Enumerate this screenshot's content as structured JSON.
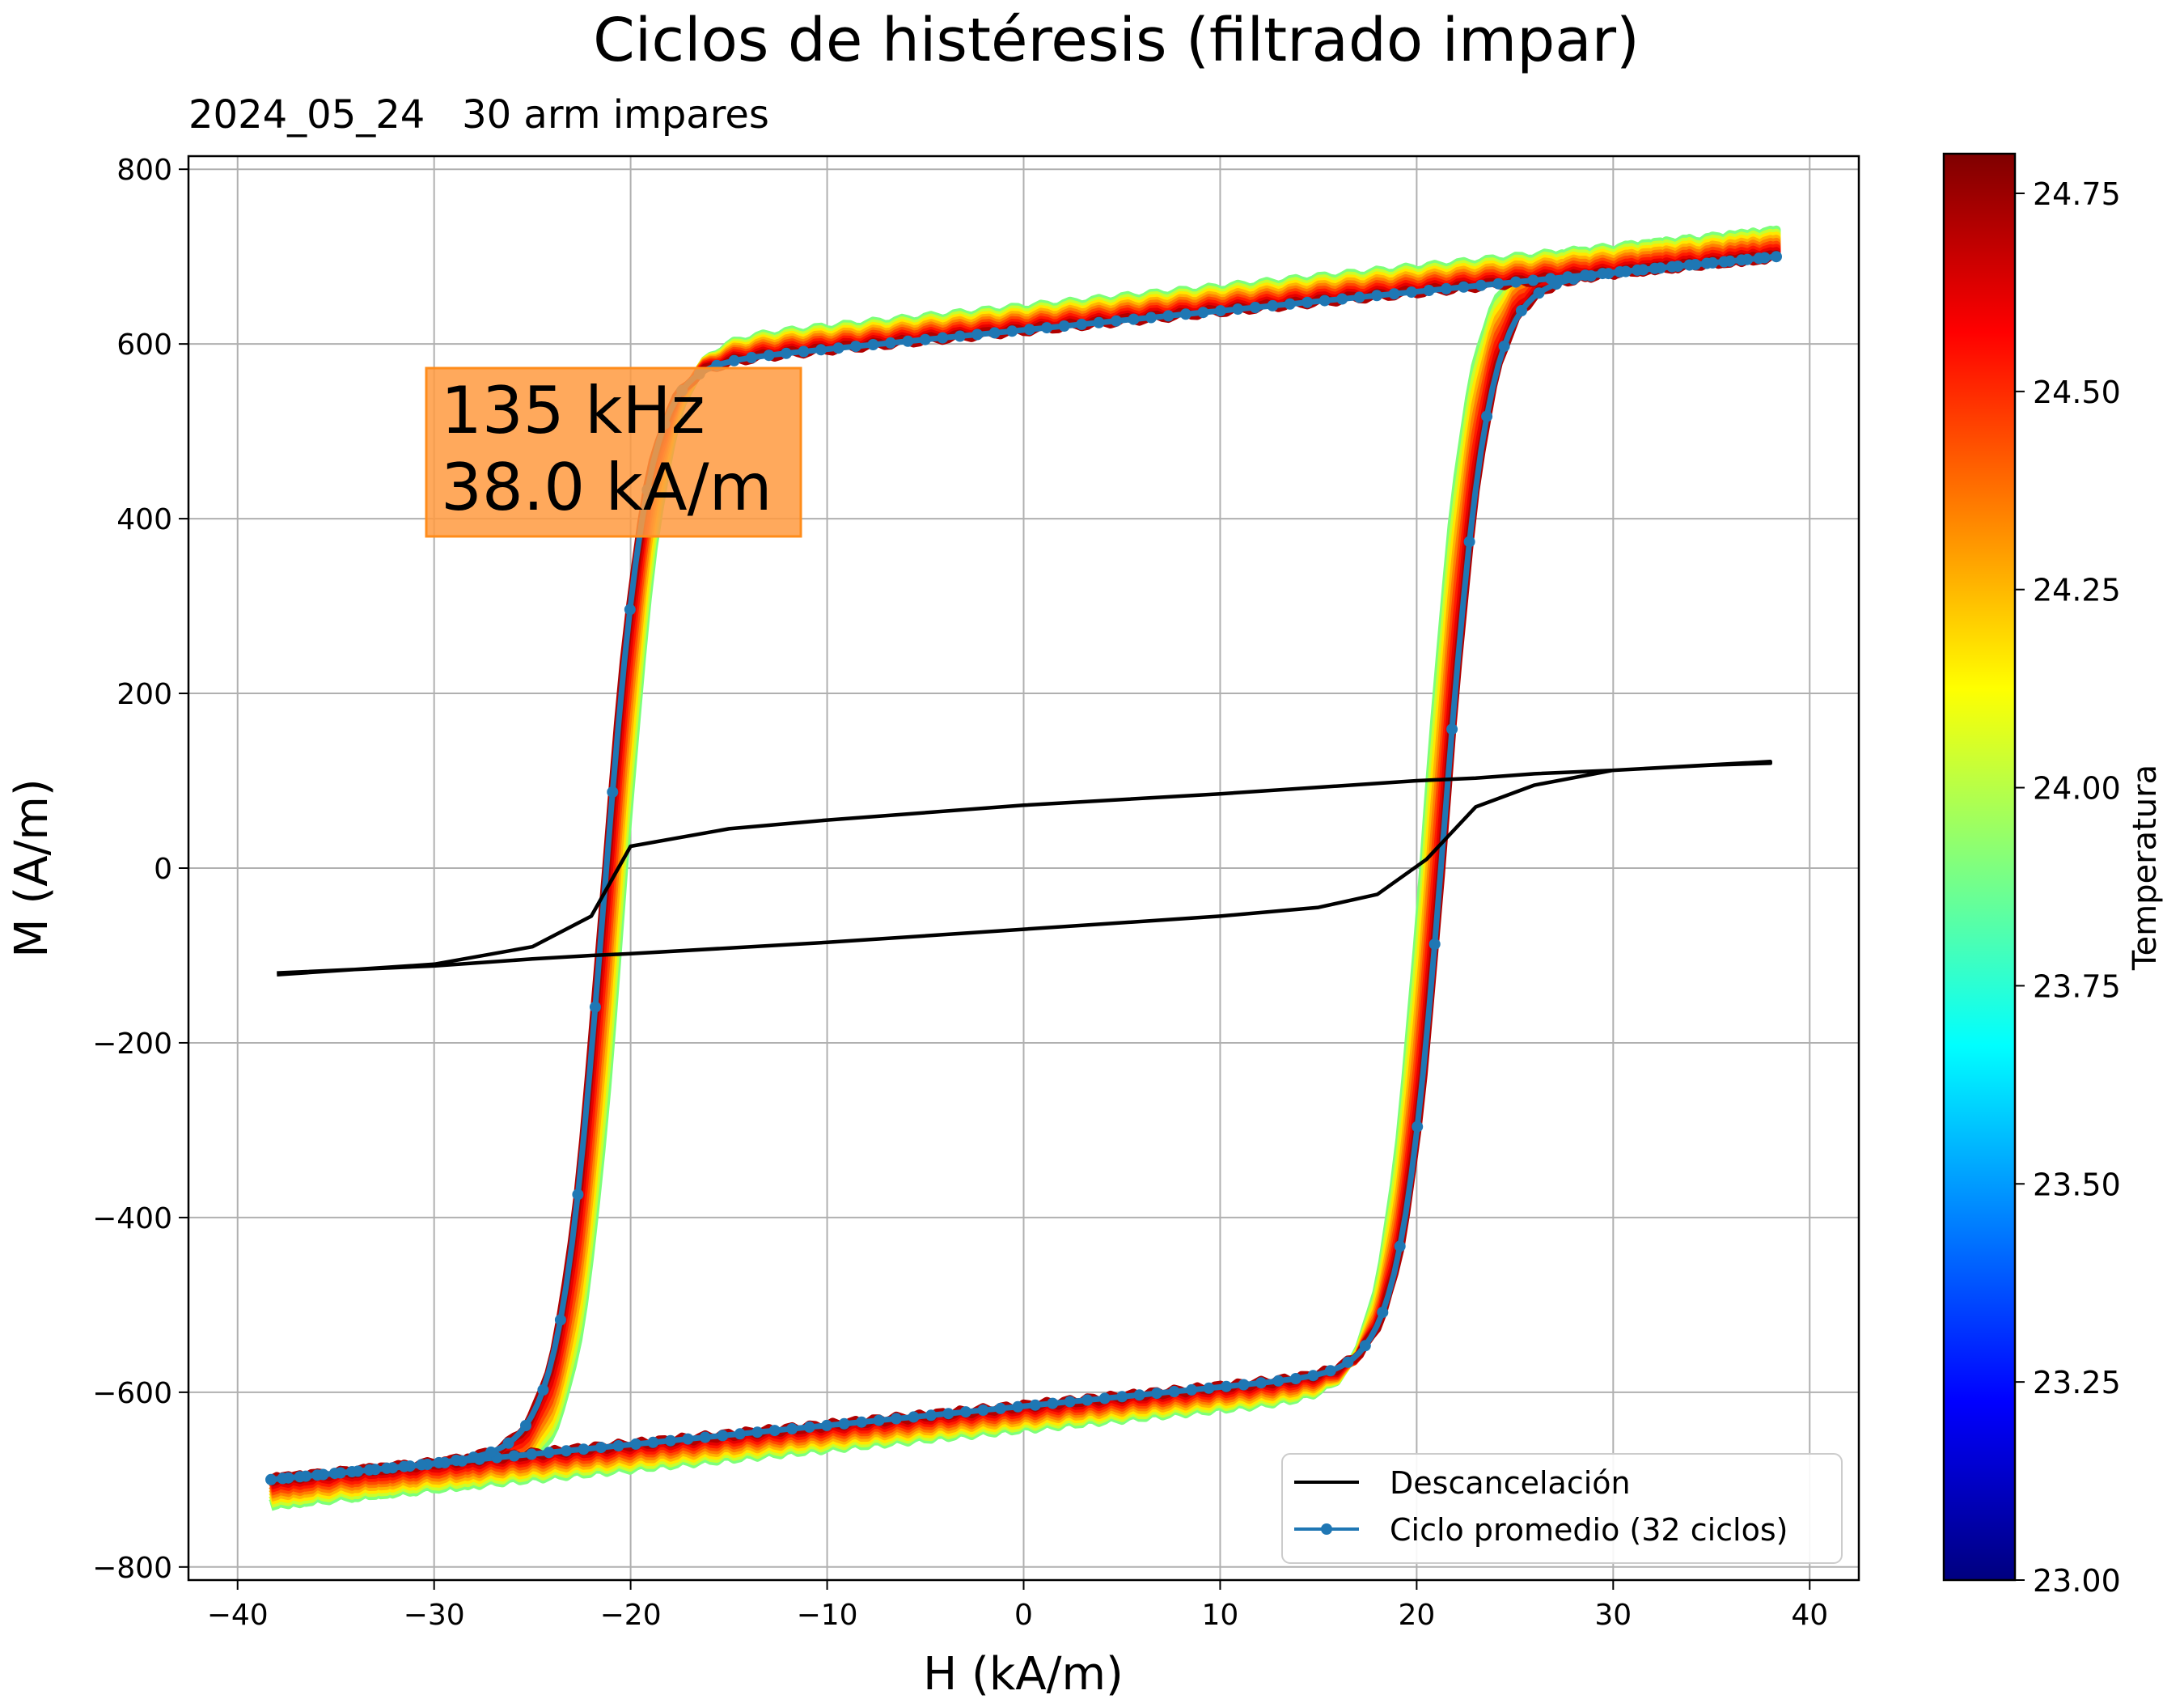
{
  "chart_data": {
    "type": "line",
    "title": "Ciclos de histéresis (filtrado impar)",
    "subtitle": "2024_05_24   30 arm impares",
    "xlabel": "H (kA/m)",
    "ylabel": "M (A/m)",
    "xlim": [
      -42.5,
      42.5
    ],
    "ylim": [
      -815,
      815
    ],
    "xticks": [
      -40,
      -30,
      -20,
      -10,
      0,
      10,
      20,
      30,
      40
    ],
    "xtick_labels": [
      "−40",
      "−30",
      "−20",
      "−10",
      "0",
      "10",
      "20",
      "30",
      "40"
    ],
    "yticks": [
      -800,
      -600,
      -400,
      -200,
      0,
      200,
      400,
      600,
      800
    ],
    "ytick_labels": [
      "−800",
      "−600",
      "−400",
      "−200",
      "0",
      "200",
      "400",
      "600",
      "800"
    ],
    "grid": true,
    "legend_position": "bottom-right",
    "annotation": {
      "lines": [
        "135 kHz",
        "38.0 kA/m"
      ],
      "color": "#ff9a40"
    },
    "loop_model": {
      "H_max": 38.3,
      "coercive_field": 21.4,
      "saturation_M": 700,
      "width": 2.2
    },
    "cycle_colors": [
      "#7dff7a",
      "#c8ff2e",
      "#ffe800",
      "#ffb400",
      "#ff8000",
      "#ff4a00",
      "#ff1a00",
      "#e60000",
      "#b00000"
    ],
    "series": [
      {
        "name": "Descancelación",
        "color": "#000000",
        "upper": {
          "H": [
            -38,
            -30,
            -25,
            -22,
            -20,
            -15,
            -10,
            0,
            10,
            20,
            23,
            26,
            30,
            35,
            38
          ],
          "M": [
            -122,
            -110,
            -90,
            -55,
            25,
            45,
            55,
            72,
            85,
            100,
            103,
            108,
            112,
            118,
            120
          ]
        },
        "lower": {
          "H": [
            38,
            30,
            26,
            23,
            20.5,
            18,
            15,
            10,
            0,
            -10,
            -20,
            -22,
            -25,
            -30,
            -38
          ],
          "M": [
            122,
            112,
            95,
            70,
            10,
            -30,
            -45,
            -55,
            -70,
            -85,
            -98,
            -100,
            -104,
            -112,
            -120
          ]
        }
      },
      {
        "name": "Ciclo promedio (32 ciclos)",
        "color": "#1f77b4",
        "marker": "circle"
      }
    ],
    "colorbar": {
      "label": "Temperatura",
      "min": 23.0,
      "max": 24.8,
      "ticks": [
        23.0,
        23.25,
        23.5,
        23.75,
        24.0,
        24.25,
        24.5,
        24.75
      ],
      "tick_labels": [
        "23.00",
        "23.25",
        "23.50",
        "23.75",
        "24.00",
        "24.25",
        "24.50",
        "24.75"
      ],
      "colormap": [
        "#00007f",
        "#0000ff",
        "#007fff",
        "#00ffff",
        "#7fff7f",
        "#ffff00",
        "#ff7f00",
        "#ff0000",
        "#7f0000"
      ]
    }
  }
}
